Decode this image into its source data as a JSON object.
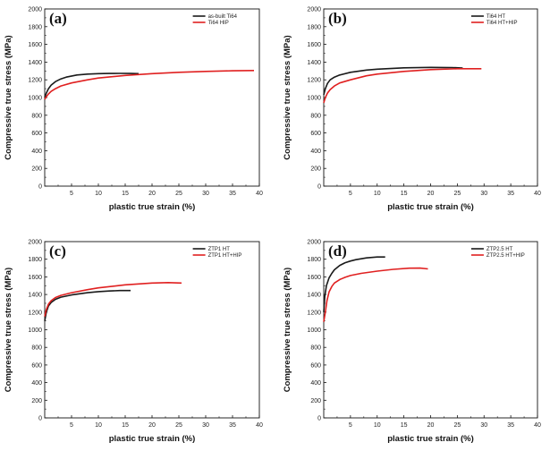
{
  "chart_data": [
    {
      "type": "line",
      "panel_label": "(a)",
      "xlabel": "plastic true strain (%)",
      "ylabel": "Compressive true stress (MPa)",
      "xlim": [
        0,
        40
      ],
      "ylim": [
        0,
        2000
      ],
      "xticks": [
        "5",
        "10",
        "15",
        "20",
        "25",
        "30",
        "35",
        "40"
      ],
      "yticks": [
        "0",
        "200",
        "400",
        "600",
        "800",
        "1000",
        "1200",
        "1400",
        "1600",
        "1800",
        "2000"
      ],
      "grid": false,
      "legend_position": "top-right",
      "series": [
        {
          "name": "as-built Ti64",
          "color": "#1a1a1a",
          "x": [
            0,
            0.3,
            0.7,
            1.2,
            2,
            3,
            4,
            6,
            8,
            10,
            12,
            14,
            16,
            17.5
          ],
          "y": [
            1000,
            1050,
            1100,
            1140,
            1180,
            1210,
            1230,
            1255,
            1265,
            1270,
            1272,
            1273,
            1272,
            1270
          ]
        },
        {
          "name": "Ti64 HIP",
          "color": "#e02020",
          "x": [
            0,
            0.3,
            0.7,
            1.2,
            2,
            3,
            5,
            8,
            10,
            15,
            20,
            25,
            30,
            35,
            39
          ],
          "y": [
            980,
            1010,
            1040,
            1070,
            1100,
            1130,
            1165,
            1200,
            1220,
            1250,
            1270,
            1285,
            1295,
            1302,
            1305
          ]
        }
      ]
    },
    {
      "type": "line",
      "panel_label": "(b)",
      "xlabel": "plastic true strain (%)",
      "ylabel": "Compressive true stress (MPa)",
      "xlim": [
        0,
        40
      ],
      "ylim": [
        0,
        2000
      ],
      "xticks": [
        "5",
        "10",
        "15",
        "20",
        "25",
        "30",
        "35",
        "40"
      ],
      "yticks": [
        "0",
        "200",
        "400",
        "600",
        "800",
        "1000",
        "1200",
        "1400",
        "1600",
        "1800",
        "2000"
      ],
      "grid": false,
      "legend_position": "top-right",
      "series": [
        {
          "name": "Ti64 HT",
          "color": "#1a1a1a",
          "x": [
            0,
            0.3,
            0.7,
            1.2,
            2,
            3,
            5,
            8,
            10,
            15,
            20,
            24,
            26
          ],
          "y": [
            1030,
            1100,
            1160,
            1200,
            1230,
            1255,
            1285,
            1310,
            1320,
            1335,
            1340,
            1338,
            1333
          ]
        },
        {
          "name": "Ti64 HT+HIP",
          "color": "#e02020",
          "x": [
            0,
            0.3,
            0.7,
            1.2,
            2,
            3,
            5,
            8,
            10,
            15,
            20,
            25,
            29.5
          ],
          "y": [
            940,
            1000,
            1050,
            1090,
            1130,
            1165,
            1200,
            1245,
            1265,
            1295,
            1315,
            1325,
            1325
          ]
        }
      ]
    },
    {
      "type": "line",
      "panel_label": "(c)",
      "xlabel": "plastic true strain (%)",
      "ylabel": "Compressive true stress (MPa)",
      "xlim": [
        0,
        40
      ],
      "ylim": [
        0,
        2000
      ],
      "xticks": [
        "5",
        "10",
        "15",
        "20",
        "25",
        "30",
        "35",
        "40"
      ],
      "yticks": [
        "0",
        "200",
        "400",
        "600",
        "800",
        "1000",
        "1200",
        "1400",
        "1600",
        "1800",
        "2000"
      ],
      "grid": false,
      "legend_position": "top-right",
      "series": [
        {
          "name": "ZTP1 HT",
          "color": "#1a1a1a",
          "x": [
            0,
            0.3,
            0.7,
            1.2,
            2,
            3,
            5,
            8,
            10,
            12,
            14,
            16
          ],
          "y": [
            1100,
            1200,
            1270,
            1310,
            1345,
            1370,
            1395,
            1420,
            1432,
            1440,
            1445,
            1445
          ]
        },
        {
          "name": "ZTP1 HT+HIP",
          "color": "#e02020",
          "x": [
            0,
            0.3,
            0.7,
            1.2,
            2,
            3,
            5,
            8,
            10,
            15,
            20,
            23,
            25.5
          ],
          "y": [
            1150,
            1230,
            1290,
            1330,
            1365,
            1390,
            1420,
            1455,
            1475,
            1510,
            1530,
            1535,
            1530
          ]
        }
      ]
    },
    {
      "type": "line",
      "panel_label": "(d)",
      "xlabel": "plastic true strain (%)",
      "ylabel": "Compressive true stress (MPa)",
      "xlim": [
        0,
        40
      ],
      "ylim": [
        0,
        2000
      ],
      "xticks": [
        "5",
        "10",
        "15",
        "20",
        "25",
        "30",
        "35",
        "40"
      ],
      "yticks": [
        "0",
        "200",
        "400",
        "600",
        "800",
        "1000",
        "1200",
        "1400",
        "1600",
        "1800",
        "2000"
      ],
      "grid": false,
      "legend_position": "top-right",
      "series": [
        {
          "name": "ZTP2.5 HT",
          "color": "#1a1a1a",
          "x": [
            0,
            0.2,
            0.5,
            1,
            1.5,
            2,
            3,
            4,
            5,
            6,
            8,
            10,
            11.5
          ],
          "y": [
            1200,
            1380,
            1500,
            1590,
            1640,
            1680,
            1730,
            1760,
            1780,
            1795,
            1815,
            1825,
            1825
          ]
        },
        {
          "name": "ZTP2.5 HT+HIP",
          "color": "#e02020",
          "x": [
            0,
            0.3,
            0.6,
            1,
            1.5,
            2,
            3,
            4,
            5,
            7,
            10,
            13,
            16,
            18,
            19.5
          ],
          "y": [
            1090,
            1200,
            1330,
            1430,
            1490,
            1530,
            1570,
            1595,
            1615,
            1640,
            1665,
            1685,
            1698,
            1700,
            1690
          ]
        }
      ]
    }
  ]
}
